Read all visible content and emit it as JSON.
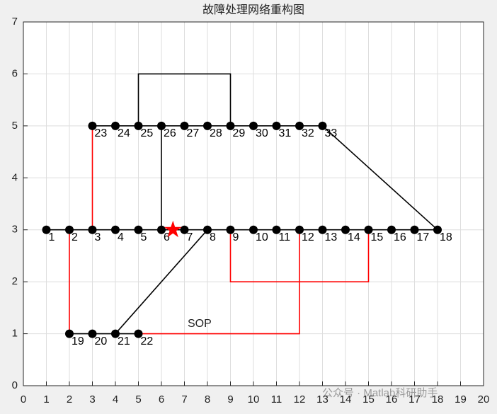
{
  "chart_data": {
    "type": "network",
    "title": "故障处理网络重构图",
    "xlim": [
      0,
      20
    ],
    "xticks": [
      0,
      1,
      2,
      3,
      4,
      5,
      6,
      7,
      8,
      9,
      10,
      11,
      12,
      13,
      14,
      15,
      16,
      17,
      18,
      19,
      20
    ],
    "ylim": [
      0,
      7
    ],
    "yticks": [
      0,
      1,
      2,
      3,
      4,
      5,
      6,
      7
    ],
    "grid": true,
    "nodes": {
      "color": "#000000",
      "x": [
        1,
        2,
        3,
        4,
        5,
        6,
        7,
        8,
        9,
        10,
        11,
        12,
        13,
        14,
        15,
        16,
        17,
        18,
        2,
        3,
        4,
        5,
        3,
        4,
        5,
        6,
        7,
        8,
        9,
        10,
        11,
        12,
        13
      ],
      "y": [
        3,
        3,
        3,
        3,
        3,
        3,
        3,
        3,
        3,
        3,
        3,
        3,
        3,
        3,
        3,
        3,
        3,
        3,
        1,
        1,
        1,
        1,
        5,
        5,
        5,
        5,
        5,
        5,
        5,
        5,
        5,
        5,
        5
      ],
      "labels": [
        "1",
        "2",
        "3",
        "4",
        "5",
        "6",
        "7",
        "8",
        "9",
        "10",
        "11",
        "12",
        "13",
        "14",
        "15",
        "16",
        "17",
        "18",
        "19",
        "20",
        "21",
        "22",
        "23",
        "24",
        "25",
        "26",
        "27",
        "28",
        "29",
        "30",
        "31",
        "32",
        "33"
      ]
    },
    "lines": [
      {
        "color": "#000000",
        "x": [
          1,
          18
        ],
        "y": [
          3,
          3
        ]
      },
      {
        "color": "#000000",
        "x": [
          2,
          5
        ],
        "y": [
          1,
          1
        ]
      },
      {
        "color": "#000000",
        "x": [
          3,
          13
        ],
        "y": [
          5,
          5
        ]
      },
      {
        "color": "#000000",
        "x": [
          6,
          6
        ],
        "y": [
          3,
          5
        ]
      },
      {
        "color": "#000000",
        "x": [
          13,
          18
        ],
        "y": [
          5,
          3
        ]
      },
      {
        "color": "#000000",
        "x": [
          4,
          8
        ],
        "y": [
          1,
          3
        ]
      },
      {
        "color": "#000000",
        "x": [
          5,
          5,
          9,
          9
        ],
        "y": [
          5,
          6,
          6,
          5
        ]
      },
      {
        "color": "#ff0000",
        "x": [
          2,
          2
        ],
        "y": [
          3,
          1
        ]
      },
      {
        "color": "#ff0000",
        "x": [
          3,
          3
        ],
        "y": [
          3,
          5
        ]
      },
      {
        "color": "#ff0000",
        "x": [
          9,
          9,
          15,
          15
        ],
        "y": [
          3,
          2,
          2,
          3
        ]
      },
      {
        "color": "#ff0000",
        "x": [
          5,
          12,
          12
        ],
        "y": [
          1,
          1,
          3
        ]
      }
    ],
    "fault": {
      "x": 6.5,
      "y": 3,
      "color": "#ff0000"
    },
    "annotation": "SOP",
    "watermark": "公众号 · Matlab科研助手"
  }
}
